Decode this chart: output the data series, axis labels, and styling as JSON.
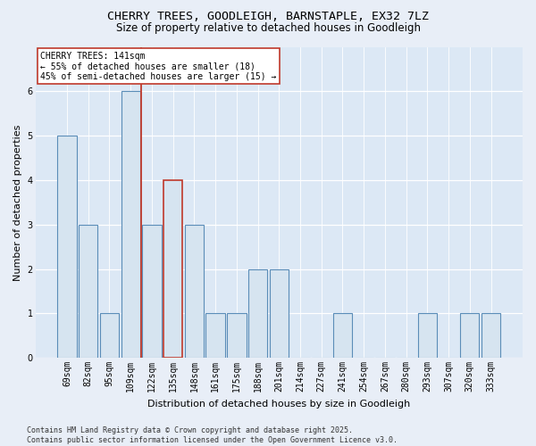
{
  "title_line1": "CHERRY TREES, GOODLEIGH, BARNSTAPLE, EX32 7LZ",
  "title_line2": "Size of property relative to detached houses in Goodleigh",
  "xlabel": "Distribution of detached houses by size in Goodleigh",
  "ylabel": "Number of detached properties",
  "categories": [
    "69sqm",
    "82sqm",
    "95sqm",
    "109sqm",
    "122sqm",
    "135sqm",
    "148sqm",
    "161sqm",
    "175sqm",
    "188sqm",
    "201sqm",
    "214sqm",
    "227sqm",
    "241sqm",
    "254sqm",
    "267sqm",
    "280sqm",
    "293sqm",
    "307sqm",
    "320sqm",
    "333sqm"
  ],
  "values": [
    5,
    3,
    1,
    6,
    3,
    4,
    3,
    1,
    1,
    2,
    2,
    0,
    0,
    1,
    0,
    0,
    0,
    1,
    0,
    1,
    1
  ],
  "bar_color": "#d6e4f0",
  "bar_edge_color": "#5b8db8",
  "highlight_index": 5,
  "highlight_edge_color": "#c0392b",
  "vline_x": 3.5,
  "vline_color": "#c0392b",
  "annotation_text": "CHERRY TREES: 141sqm\n← 55% of detached houses are smaller (18)\n45% of semi-detached houses are larger (15) →",
  "annotation_box_color": "#ffffff",
  "annotation_box_edge_color": "#c0392b",
  "ylim": [
    0,
    7
  ],
  "yticks": [
    0,
    1,
    2,
    3,
    4,
    5,
    6
  ],
  "footer_text": "Contains HM Land Registry data © Crown copyright and database right 2025.\nContains public sector information licensed under the Open Government Licence v3.0.",
  "background_color": "#e8eef7",
  "plot_background_color": "#dce8f5",
  "title_fontsize": 9.5,
  "subtitle_fontsize": 8.5,
  "axis_label_fontsize": 8,
  "tick_fontsize": 7,
  "annotation_fontsize": 7,
  "footer_fontsize": 6
}
